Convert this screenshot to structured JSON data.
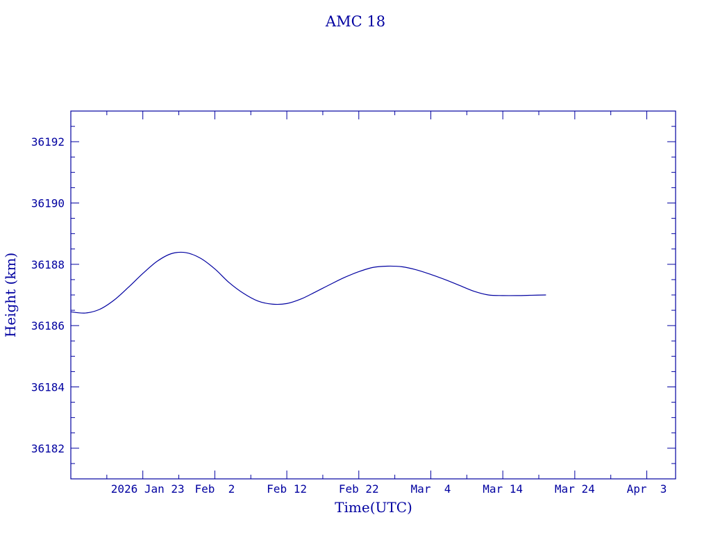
{
  "chart_data": {
    "type": "line",
    "title": "AMC 18",
    "xlabel": "Time(UTC)",
    "ylabel": "Height (km)",
    "x_tick_labels": [
      "2026 Jan 23",
      "Feb  2",
      "Feb 12",
      "Feb 22",
      "Mar  4",
      "Mar 14",
      "Mar 24",
      "Apr  3"
    ],
    "x_ticks": [
      "2026-01-23",
      "2026-02-02",
      "2026-02-12",
      "2026-02-22",
      "2026-03-04",
      "2026-03-14",
      "2026-03-24",
      "2026-04-03"
    ],
    "xlim": [
      "2026-01-13",
      "2026-04-07"
    ],
    "ylim": [
      36181,
      36193
    ],
    "y_ticks": [
      36182,
      36184,
      36186,
      36188,
      36190,
      36192
    ],
    "grid": false,
    "series": [
      {
        "x": [
          "2026-01-13",
          "2026-01-15",
          "2026-01-17",
          "2026-01-19",
          "2026-01-21",
          "2026-01-23",
          "2026-01-25",
          "2026-01-27",
          "2026-01-29",
          "2026-01-31",
          "2026-02-02",
          "2026-02-04",
          "2026-02-06",
          "2026-02-08",
          "2026-02-10",
          "2026-02-12",
          "2026-02-14",
          "2026-02-16",
          "2026-02-18",
          "2026-02-20",
          "2026-02-22",
          "2026-02-24",
          "2026-02-26",
          "2026-02-28",
          "2026-03-02",
          "2026-03-04",
          "2026-03-06",
          "2026-03-08",
          "2026-03-10",
          "2026-03-12",
          "2026-03-14",
          "2026-03-16",
          "2026-03-18",
          "2026-03-20"
        ],
        "values": [
          36186.45,
          36186.41,
          36186.53,
          36186.83,
          36187.25,
          36187.7,
          36188.1,
          36188.35,
          36188.38,
          36188.2,
          36187.85,
          36187.4,
          36187.05,
          36186.8,
          36186.7,
          36186.72,
          36186.87,
          36187.1,
          36187.34,
          36187.57,
          36187.76,
          36187.9,
          36187.94,
          36187.92,
          36187.82,
          36187.67,
          36187.5,
          36187.31,
          36187.12,
          36187.0,
          36186.98,
          36186.98,
          36186.99,
          36187.0
        ]
      }
    ]
  }
}
